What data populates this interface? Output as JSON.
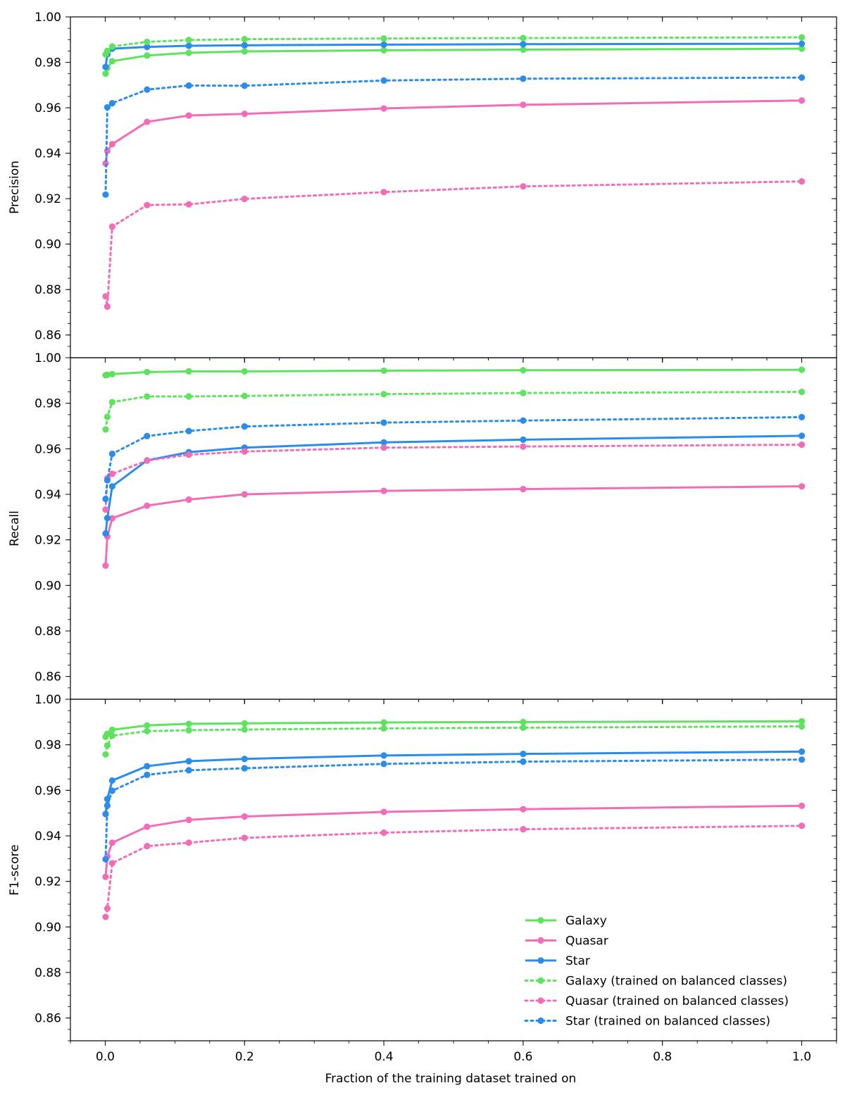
{
  "colors": {
    "galaxy": "#5de35d",
    "quasar": "#f26cb8",
    "star": "#2a8ceb"
  },
  "chart_data": {
    "type": "line",
    "xlabel": "Fraction of the training dataset trained on",
    "xlim": [
      -0.05,
      1.05
    ],
    "x_ticks": [
      0.0,
      0.2,
      0.4,
      0.6,
      0.8,
      1.0
    ],
    "x_tick_labels": [
      "0.0",
      "0.2",
      "0.4",
      "0.6",
      "0.8",
      "1.0"
    ],
    "x": [
      0.0005,
      0.003,
      0.01,
      0.06,
      0.12,
      0.2,
      0.4,
      0.6,
      1.0
    ],
    "legend": {
      "location": "lower-right",
      "entries": [
        {
          "label": "Galaxy",
          "series": "galaxy",
          "style": "solid"
        },
        {
          "label": "Quasar",
          "series": "quasar",
          "style": "solid"
        },
        {
          "label": "Star",
          "series": "star",
          "style": "solid"
        },
        {
          "label": "Galaxy (trained on balanced classes)",
          "series": "galaxy",
          "style": "dotted"
        },
        {
          "label": "Quasar (trained on balanced classes)",
          "series": "quasar",
          "style": "dotted"
        },
        {
          "label": "Star (trained on balanced classes)",
          "series": "star",
          "style": "dotted"
        }
      ]
    },
    "panels": [
      {
        "ylabel": "Precision",
        "ylim": [
          0.85,
          1.0
        ],
        "y_ticks": [
          0.86,
          0.88,
          0.9,
          0.92,
          0.94,
          0.96,
          0.98,
          1.0
        ],
        "y_tick_labels": [
          "0.86",
          "0.88",
          "0.90",
          "0.92",
          "0.94",
          "0.96",
          "0.98",
          "1.00"
        ],
        "series": [
          {
            "name": "Galaxy",
            "color_key": "galaxy",
            "style": "solid",
            "values": [
              0.975,
              0.9775,
              0.9805,
              0.983,
              0.9842,
              0.9848,
              0.9853,
              0.9856,
              0.986
            ]
          },
          {
            "name": "Quasar",
            "color_key": "quasar",
            "style": "solid",
            "values": [
              0.9355,
              0.941,
              0.944,
              0.9538,
              0.9566,
              0.9573,
              0.9597,
              0.9613,
              0.9632
            ]
          },
          {
            "name": "Star",
            "color_key": "star",
            "style": "solid",
            "values": [
              0.978,
              0.9835,
              0.986,
              0.9868,
              0.9873,
              0.9875,
              0.9878,
              0.988,
              0.9882
            ]
          },
          {
            "name": "Galaxy (trained on balanced classes)",
            "color_key": "galaxy",
            "style": "dotted",
            "values": [
              0.9835,
              0.985,
              0.987,
              0.989,
              0.9898,
              0.9902,
              0.9905,
              0.9907,
              0.991
            ]
          },
          {
            "name": "Quasar (trained on balanced classes)",
            "color_key": "quasar",
            "style": "dotted",
            "values": [
              0.877,
              0.8725,
              0.9077,
              0.9172,
              0.9175,
              0.9199,
              0.9229,
              0.9254,
              0.9276
            ]
          },
          {
            "name": "Star (trained on balanced classes)",
            "color_key": "star",
            "style": "dotted",
            "values": [
              0.9218,
              0.9602,
              0.962,
              0.968,
              0.9698,
              0.9697,
              0.972,
              0.9728,
              0.9733
            ]
          }
        ]
      },
      {
        "ylabel": "Recall",
        "ylim": [
          0.85,
          1.0
        ],
        "y_ticks": [
          0.86,
          0.88,
          0.9,
          0.92,
          0.94,
          0.96,
          0.98,
          1.0
        ],
        "y_tick_labels": [
          "0.86",
          "0.88",
          "0.90",
          "0.92",
          "0.94",
          "0.96",
          "0.98",
          "1.00"
        ],
        "series": [
          {
            "name": "Galaxy",
            "color_key": "galaxy",
            "style": "solid",
            "values": [
              0.9923,
              0.9925,
              0.9928,
              0.9937,
              0.994,
              0.994,
              0.9943,
              0.9945,
              0.9947
            ]
          },
          {
            "name": "Quasar",
            "color_key": "quasar",
            "style": "solid",
            "values": [
              0.9087,
              0.9215,
              0.9295,
              0.935,
              0.9377,
              0.94,
              0.9415,
              0.9423,
              0.9435
            ]
          },
          {
            "name": "Star",
            "color_key": "star",
            "style": "solid",
            "values": [
              0.9228,
              0.9296,
              0.9435,
              0.9549,
              0.9585,
              0.9605,
              0.9628,
              0.964,
              0.9657
            ]
          },
          {
            "name": "Galaxy (trained on balanced classes)",
            "color_key": "galaxy",
            "style": "dotted",
            "values": [
              0.9685,
              0.974,
              0.9805,
              0.983,
              0.983,
              0.9832,
              0.984,
              0.9845,
              0.985
            ]
          },
          {
            "name": "Quasar (trained on balanced classes)",
            "color_key": "quasar",
            "style": "dotted",
            "values": [
              0.9333,
              0.947,
              0.949,
              0.9548,
              0.9574,
              0.9588,
              0.9605,
              0.961,
              0.9618
            ]
          },
          {
            "name": "Star (trained on balanced classes)",
            "color_key": "star",
            "style": "dotted",
            "values": [
              0.938,
              0.9462,
              0.9578,
              0.9656,
              0.9678,
              0.9698,
              0.9715,
              0.9724,
              0.9739
            ]
          }
        ]
      },
      {
        "ylabel": "F1-score",
        "ylim": [
          0.85,
          1.0
        ],
        "y_ticks": [
          0.86,
          0.88,
          0.9,
          0.92,
          0.94,
          0.96,
          0.98,
          1.0
        ],
        "y_tick_labels": [
          "0.86",
          "0.88",
          "0.90",
          "0.92",
          "0.94",
          "0.96",
          "0.98",
          "1.00"
        ],
        "series": [
          {
            "name": "Galaxy",
            "color_key": "galaxy",
            "style": "solid",
            "values": [
              0.9835,
              0.9848,
              0.9866,
              0.9885,
              0.9892,
              0.9894,
              0.9898,
              0.99,
              0.9903
            ]
          },
          {
            "name": "Quasar",
            "color_key": "quasar",
            "style": "solid",
            "values": [
              0.922,
              0.931,
              0.937,
              0.944,
              0.947,
              0.9485,
              0.9505,
              0.9517,
              0.9532
            ]
          },
          {
            "name": "Star",
            "color_key": "star",
            "style": "solid",
            "values": [
              0.9496,
              0.9562,
              0.9643,
              0.9706,
              0.9728,
              0.9738,
              0.9753,
              0.976,
              0.977
            ]
          },
          {
            "name": "Galaxy (trained on balanced classes)",
            "color_key": "galaxy",
            "style": "dotted",
            "values": [
              0.9758,
              0.9797,
              0.984,
              0.986,
              0.9864,
              0.9867,
              0.9872,
              0.9875,
              0.9881
            ]
          },
          {
            "name": "Quasar (trained on balanced classes)",
            "color_key": "quasar",
            "style": "dotted",
            "values": [
              0.9044,
              0.9081,
              0.928,
              0.9355,
              0.937,
              0.9391,
              0.9414,
              0.9429,
              0.9444
            ]
          },
          {
            "name": "Star (trained on balanced classes)",
            "color_key": "star",
            "style": "dotted",
            "values": [
              0.9297,
              0.9533,
              0.9598,
              0.9668,
              0.9688,
              0.9697,
              0.9716,
              0.9726,
              0.9735
            ]
          }
        ]
      }
    ]
  }
}
